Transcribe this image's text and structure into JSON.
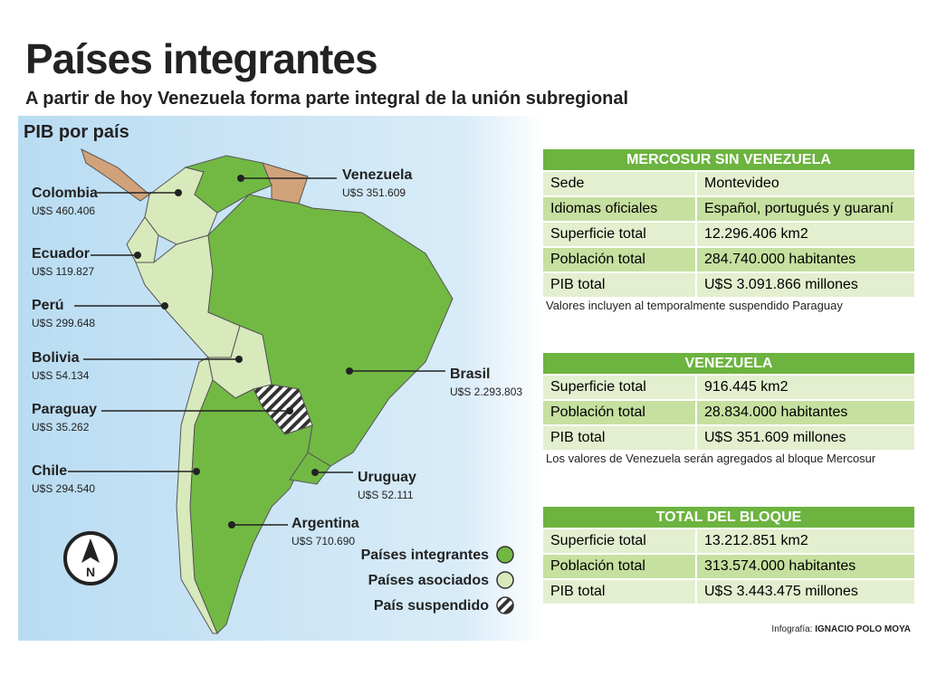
{
  "header": {
    "title": "Países integrantes",
    "subtitle": "A partir de hoy Venezuela forma parte integral de la unión subregional"
  },
  "map": {
    "title": "PIB por país",
    "countries": [
      {
        "name": "Colombia",
        "value": "U$S 460.406"
      },
      {
        "name": "Ecuador",
        "value": "U$S 119.827"
      },
      {
        "name": "Perú",
        "value": "U$S 299.648"
      },
      {
        "name": "Bolivia",
        "value": "U$S 54.134"
      },
      {
        "name": "Paraguay",
        "value": "U$S 35.262"
      },
      {
        "name": "Chile",
        "value": "U$S 294.540"
      },
      {
        "name": "Venezuela",
        "value": "U$S 351.609"
      },
      {
        "name": "Brasil",
        "value": "U$S 2.293.803"
      },
      {
        "name": "Uruguay",
        "value": "U$S 52.111"
      },
      {
        "name": "Argentina",
        "value": "U$S 710.690"
      }
    ],
    "legend": [
      "Países integrantes",
      "Países asociados",
      "País suspendido"
    ],
    "compass": "N"
  },
  "tables": [
    {
      "title": "MERCOSUR SIN VENEZUELA",
      "rows": [
        [
          "Sede",
          "Montevideo"
        ],
        [
          "Idiomas oficiales",
          "Español, portugués y guaraní"
        ],
        [
          "Superficie total",
          "12.296.406 km2"
        ],
        [
          "Población total",
          "284.740.000 habitantes"
        ],
        [
          "PIB total",
          "U$S 3.091.866 millones"
        ]
      ],
      "note": "Valores incluyen al temporalmente suspendido Paraguay"
    },
    {
      "title": "VENEZUELA",
      "rows": [
        [
          "Superficie total",
          "916.445 km2"
        ],
        [
          "Población total",
          "28.834.000 habitantes"
        ],
        [
          "PIB total",
          "U$S 351.609 millones"
        ]
      ],
      "note": "Los valores de Venezuela serán agregados al bloque Mercosur"
    },
    {
      "title": "TOTAL DEL BLOQUE",
      "rows": [
        [
          "Superficie total",
          "13.212.851 km2"
        ],
        [
          "Población total",
          "313.574.000 habitantes"
        ],
        [
          "PIB total",
          "U$S 3.443.475 millones"
        ]
      ]
    }
  ],
  "credit": {
    "label": "Infografía:",
    "name": "IGNACIO POLO MOYA"
  }
}
